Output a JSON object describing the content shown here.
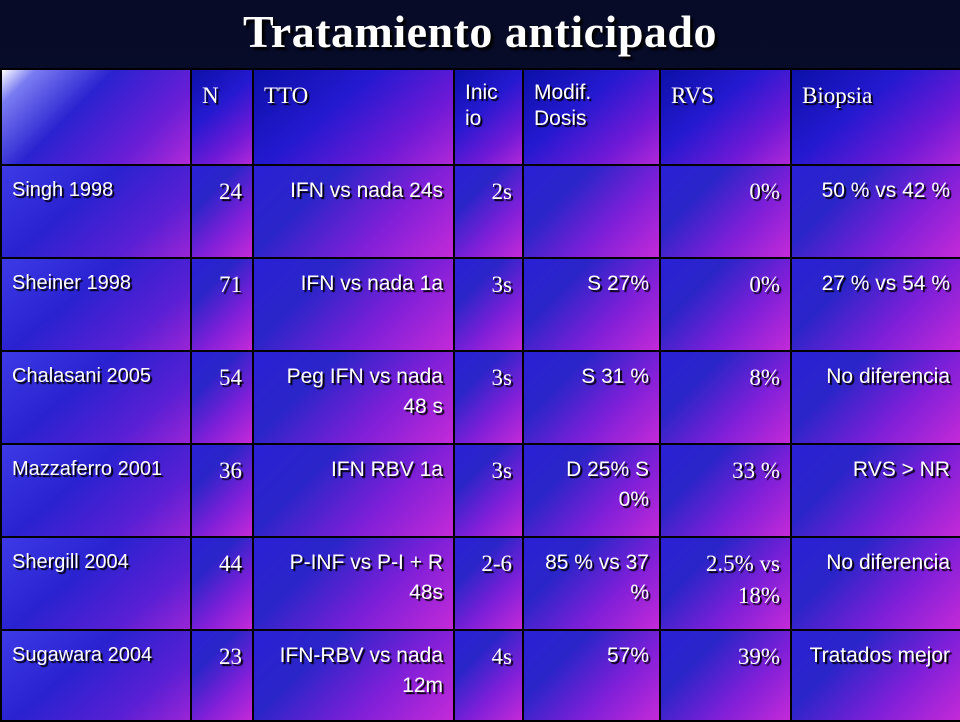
{
  "slide": {
    "title": "Tratamiento anticipado"
  },
  "table": {
    "headers": [
      "",
      "N",
      "TTO",
      "Inicio",
      "Modif. Dosis",
      "RVS",
      "Biopsia"
    ],
    "header_display": {
      "n": "N",
      "tto": "TTO",
      "inicio_line1": "Inic",
      "inicio_line2": "io",
      "modif_line1": "Modif.",
      "modif_line2": "Dosis",
      "rvs": "RVS",
      "biopsia": "Biopsia"
    },
    "rows": [
      {
        "study": "Singh 1998",
        "n": "24",
        "tto": "IFN vs nada 24s",
        "inicio": "2s",
        "modif": "",
        "rvs": "0%",
        "biopsia": "50 % vs 42 %"
      },
      {
        "study": "Sheiner 1998",
        "n": "71",
        "tto": "IFN vs nada 1a",
        "inicio": "3s",
        "modif": "S 27%",
        "rvs": "0%",
        "biopsia": "27 % vs 54 %"
      },
      {
        "study": "Chalasani 2005",
        "n": "54",
        "tto": "Peg IFN vs nada 48 s",
        "inicio": "3s",
        "modif": "S 31 %",
        "rvs": "8%",
        "biopsia": "No diferencia"
      },
      {
        "study": "Mazzaferro 2001",
        "n": "36",
        "tto": "IFN RBV 1a",
        "inicio": "3s",
        "modif": "D 25% S 0%",
        "rvs": "33 %",
        "biopsia": "RVS > NR"
      },
      {
        "study": "Shergill 2004",
        "n": "44",
        "tto": "P-INF vs P-I + R 48s",
        "inicio": "2-6",
        "modif": "85 % vs 37 %",
        "rvs": "2.5% vs 18%",
        "biopsia": "No diferencia"
      },
      {
        "study": "Sugawara 2004",
        "n": "23",
        "tto": "IFN-RBV vs nada 12m",
        "inicio": "4s",
        "modif": "57%",
        "rvs": "39%",
        "biopsia": "Tratados mejor"
      }
    ]
  }
}
